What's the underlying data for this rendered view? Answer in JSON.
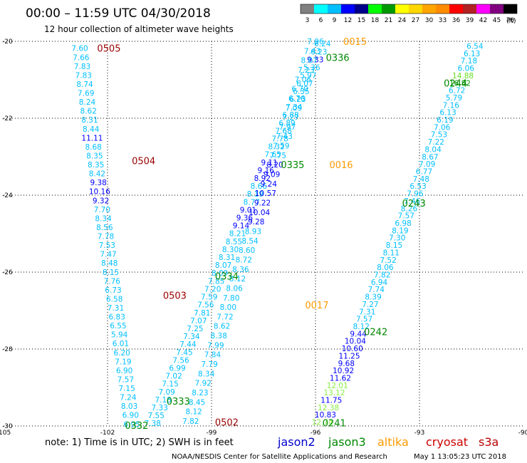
{
  "header": {
    "title": "00:00 – 11:59 UTC 04/30/2018",
    "subtitle": "12 hour collection of altimeter wave heights"
  },
  "legend": {
    "labels": [
      "3",
      "6",
      "9",
      "12",
      "15",
      "18",
      "21",
      "24",
      "27",
      "30",
      "33",
      "36",
      "39",
      "42",
      "45",
      "70"
    ],
    "unit": "(ft)",
    "colors": [
      "#808080",
      "#00ffff",
      "#00bfff",
      "#0000ff",
      "#00008b",
      "#00ff00",
      "#009900",
      "#ffff00",
      "#ffd700",
      "#ffa500",
      "#ff8c00",
      "#ff0000",
      "#b22222",
      "#ff00ff",
      "#800080",
      "#000000"
    ]
  },
  "footer": {
    "note_prefix": "note:  1) Time is in UTC;  2) SWH is in feet",
    "credit": "NOAA/NESDIS Center for Satellite Applications and Research",
    "timestamp": "May  1 13:05:23 UTC 2018"
  },
  "satellites": [
    {
      "name": "jason2",
      "color": "#0000cc"
    },
    {
      "name": "jason3",
      "color": "#008800"
    },
    {
      "name": "altika",
      "color": "#ff9900"
    },
    {
      "name": "cryosat",
      "color": "#cc0000"
    },
    {
      "name": "s3a",
      "color": "#bb0000"
    }
  ],
  "chart_data": {
    "type": "scatter",
    "title": "00:00 – 11:59 UTC 04/30/2018",
    "subtitle": "12 hour collection of altimeter wave heights",
    "x_ticks": [
      "-105",
      "-102",
      "-99",
      "-96",
      "-93",
      "-90"
    ],
    "y_ticks": [
      "-20",
      "-22",
      "-24",
      "-26",
      "-28",
      "-30"
    ],
    "xlim": [
      -105,
      -90
    ],
    "ylim": [
      -30,
      -20
    ],
    "grid": true,
    "tracks": [
      {
        "color": "#00bfff",
        "lon0": -102.8,
        "lat0": -20.18,
        "lon1": -101.3,
        "lat1": -29.95,
        "values": [
          "7.60",
          "7.66",
          "7.83",
          "7.83",
          "8.74",
          "7.69",
          "8.24",
          "8.62",
          "8.31",
          "8.44",
          "11.11",
          "8.68",
          "8.35",
          "8.35",
          "8.42",
          "9.38",
          "10.16",
          "9.32",
          "7.70",
          "8.34",
          "8.56",
          "7.78",
          "7.53",
          "7.47",
          "8.48",
          "8.15",
          "7.76",
          "6.73",
          "6.58",
          "7.31",
          "6.83",
          "6.55",
          "5.94",
          "6.01",
          "6.20",
          "7.19",
          "6.90",
          "7.57",
          "7.15",
          "7.24",
          "8.03",
          "6.90",
          "6.95"
        ],
        "colors": {
          "8": "#00bfff",
          "10": "#0000ff",
          "15": "#0000ff",
          "16": "#0000ff",
          "17": "#0000ff"
        }
      },
      {
        "color": "#00bfff",
        "lon0": -95.8,
        "lat0": -20.06,
        "lon1": -100.7,
        "lat1": -29.93,
        "values": [
          "6.24",
          "6.23",
          "9.33",
          "5.36",
          "5.97",
          "6.07",
          "6.35",
          "6.23",
          "7.34",
          "6.88",
          "6.89",
          "7.68",
          "7.78",
          "8.32",
          "7.65",
          "9.11",
          "9.16",
          "8.92",
          "8.66",
          "8.19",
          "8.77",
          "9.01",
          "9.36",
          "9.14",
          "8.21",
          "8.55",
          "8.30",
          "8.31",
          "8.07",
          "8.09",
          "7.85",
          "7.20",
          "7.59",
          "7.56",
          "7.81",
          "7.07",
          "7.25",
          "7.34",
          "7.44",
          "7.45",
          "7.56",
          "6.99",
          "7.02",
          "7.15",
          "7.09",
          "7.18",
          "7.33",
          "7.55",
          "7.38"
        ],
        "colors": {
          "2": "#0000ff",
          "15": "#0000ff",
          "16": "#0000ff",
          "17": "#0000ff",
          "21": "#0000ff",
          "22": "#0000ff",
          "23": "#0000ff"
        }
      },
      {
        "color": "#00bfff",
        "lon0": -96.0,
        "lat0": -20.0,
        "lon1": -99.6,
        "lat1": -29.87,
        "values": [
          "7.96",
          "7.43",
          "8.07",
          "7.23",
          "7.06",
          "6.70",
          "6.76",
          "7.09",
          "7.27",
          "7.97",
          "7.43",
          "7.59",
          "7.75",
          "8.20",
          "9.09",
          "9.24",
          "10.57",
          "9.22",
          "10.04",
          "9.28",
          "8.93",
          "8.54",
          "8.60",
          "8.72",
          "8.36",
          "8.12",
          "8.06",
          "7.80",
          "8.00",
          "7.72",
          "8.62",
          "8.38",
          "7.99",
          "7.84",
          "7.79",
          "8.34",
          "7.92",
          "8.23",
          "8.45",
          "8.12",
          "7.82"
        ],
        "colors": {
          "13": "#0000ff",
          "14": "#0000ff",
          "15": "#0000ff",
          "16": "#0000ff",
          "17": "#0000ff",
          "18": "#0000ff",
          "19": "#0000ff"
        }
      },
      {
        "color": "#00bfff",
        "lon0": -91.4,
        "lat0": -20.12,
        "lon1": -95.8,
        "lat1": -29.9,
        "values": [
          "6.54",
          "6.13",
          "7.18",
          "6.06",
          "14.88",
          "16.82",
          "6.72",
          "5.79",
          "7.16",
          "6.13",
          "6.19",
          "7.06",
          "7.53",
          "7.22",
          "8.04",
          "8.67",
          "7.09",
          "6.77",
          "7.48",
          "6.53",
          "7.96",
          "7.46",
          "8.26",
          "7.57",
          "6.98",
          "8.19",
          "7.30",
          "8.15",
          "8.11",
          "7.52",
          "8.06",
          "7.82",
          "6.94",
          "7.74",
          "8.39",
          "7.27",
          "7.31",
          "7.57",
          "8.12",
          "9.44",
          "10.04",
          "10.60",
          "11.25",
          "9.68",
          "10.92",
          "11.62",
          "12.01",
          "13.12",
          "11.75",
          "12.38",
          "10.83",
          "12.74"
        ],
        "colors": {
          "4": "#66dd22",
          "5": "#009900",
          "39": "#0000ff",
          "40": "#0000ff",
          "41": "#0000ff",
          "42": "#0000ff",
          "43": "#0000ff",
          "44": "#0000ff",
          "45": "#0000ff",
          "46": "#88ee44",
          "47": "#88ee44",
          "48": "#0000ff",
          "49": "#88ee44",
          "50": "#0000ff",
          "51": "#88ee44"
        }
      }
    ],
    "time_labels": [
      {
        "text": "0505",
        "lon": -102.3,
        "lat": -20.18,
        "color": "#990000"
      },
      {
        "text": "0504",
        "lon": -101.3,
        "lat": -23.1,
        "color": "#990000"
      },
      {
        "text": "0503",
        "lon": -100.4,
        "lat": -26.6,
        "color": "#990000"
      },
      {
        "text": "0502",
        "lon": -98.9,
        "lat": -29.9,
        "color": "#990000"
      },
      {
        "text": "0015",
        "lon": -95.2,
        "lat": -20.0,
        "color": "#ff9900"
      },
      {
        "text": "0016",
        "lon": -95.6,
        "lat": -23.2,
        "color": "#ff9900"
      },
      {
        "text": "0017",
        "lon": -96.3,
        "lat": -26.85,
        "color": "#ff9900"
      },
      {
        "text": "0336",
        "lon": -95.7,
        "lat": -20.42,
        "color": "#008800"
      },
      {
        "text": "0335",
        "lon": -97.0,
        "lat": -23.2,
        "color": "#008800"
      },
      {
        "text": "0334",
        "lon": -98.9,
        "lat": -26.1,
        "color": "#008800"
      },
      {
        "text": "0333",
        "lon": -100.3,
        "lat": -29.35,
        "color": "#008800"
      },
      {
        "text": "0332",
        "lon": -101.5,
        "lat": -29.98,
        "color": "#008800"
      },
      {
        "text": "0244",
        "lon": -92.3,
        "lat": -21.08,
        "color": "#008800"
      },
      {
        "text": "0243",
        "lon": -93.5,
        "lat": -24.2,
        "color": "#008800"
      },
      {
        "text": "0242",
        "lon": -94.6,
        "lat": -27.55,
        "color": "#008800"
      },
      {
        "text": "0241",
        "lon": -95.8,
        "lat": -29.92,
        "color": "#008800"
      }
    ]
  }
}
